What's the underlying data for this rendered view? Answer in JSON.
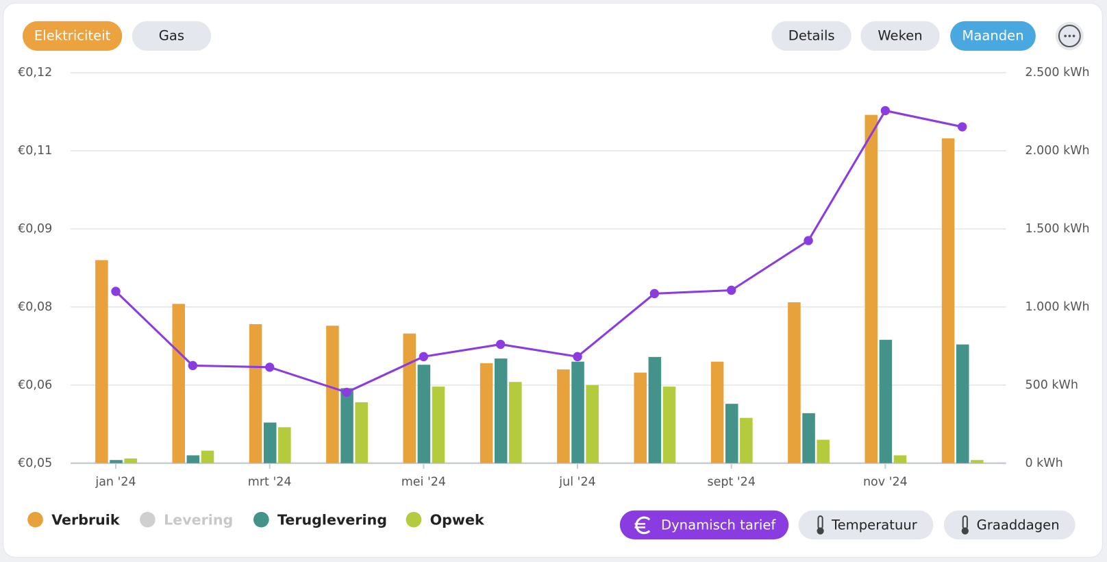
{
  "tabs": [
    "Elektriciteit",
    "Gas"
  ],
  "views": [
    "Details",
    "Weken",
    "Maanden"
  ],
  "toggles": [
    "Dynamisch tarief",
    "Temperatuur",
    "Graaddagen"
  ],
  "chart_data": {
    "type": "bar",
    "categories": [
      "jan '24",
      null,
      "mrt '24",
      null,
      "mei '24",
      null,
      "jul '24",
      null,
      "sept '24",
      null,
      "nov '24",
      null
    ],
    "series": [
      {
        "name": "Verbruik",
        "color": "#e8a23c",
        "type": "bar",
        "axis": "y2",
        "values": [
          1300,
          1020,
          890,
          880,
          830,
          640,
          600,
          580,
          650,
          1030,
          2230,
          2080
        ]
      },
      {
        "name": "Levering",
        "color": "#cfcfcf",
        "type": "bar",
        "axis": "y2",
        "values": [
          null,
          null,
          null,
          null,
          null,
          null,
          null,
          null,
          null,
          null,
          null,
          null
        ]
      },
      {
        "name": "Teruglevering",
        "color": "#43938a",
        "type": "bar",
        "axis": "y2",
        "values": [
          20,
          50,
          260,
          480,
          630,
          670,
          650,
          680,
          380,
          320,
          790,
          760
        ]
      },
      {
        "name": "Opwek",
        "color": "#b4cb3d",
        "type": "bar",
        "axis": "y2",
        "values": [
          30,
          80,
          230,
          390,
          490,
          520,
          500,
          490,
          290,
          150,
          50,
          20
        ]
      },
      {
        "name": "Dynamisch tarief",
        "color": "#8a3ce0",
        "type": "line",
        "axis": "y",
        "values": [
          0.0808,
          0.0675,
          0.0672,
          0.0627,
          0.0691,
          0.0713,
          0.0691,
          0.0804,
          0.081,
          0.0899,
          0.1132,
          0.1103
        ]
      }
    ],
    "ylim": [
      0.05,
      0.12
    ],
    "yticks": [
      {
        "value": 0.05,
        "label": "€0,05"
      },
      {
        "value": 0.064,
        "label": "€0,06"
      },
      {
        "value": 0.078,
        "label": "€0,08"
      },
      {
        "value": 0.092,
        "label": "€0,09"
      },
      {
        "value": 0.106,
        "label": "€0,11"
      },
      {
        "value": 0.12,
        "label": "€0,12"
      }
    ],
    "y2lim": [
      0,
      2500
    ],
    "y2ticks": [
      {
        "value": 0,
        "label": "0 kWh"
      },
      {
        "value": 500,
        "label": "500 kWh"
      },
      {
        "value": 1000,
        "label": "1.000 kWh"
      },
      {
        "value": 1500,
        "label": "1.500 kWh"
      },
      {
        "value": 2000,
        "label": "2.000 kWh"
      },
      {
        "value": 2500,
        "label": "2.500 kWh"
      }
    ],
    "grid": true
  }
}
